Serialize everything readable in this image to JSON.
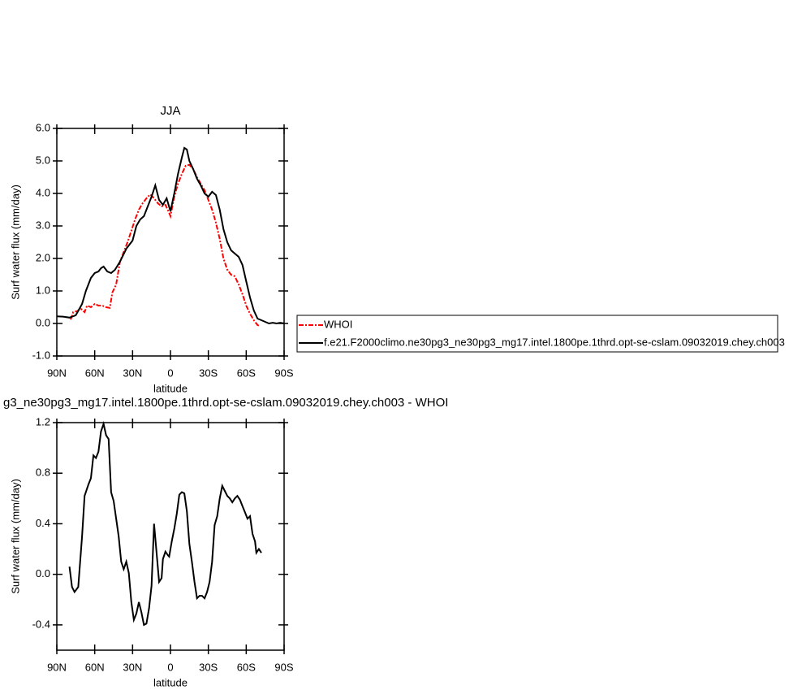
{
  "chart_data": [
    {
      "type": "line",
      "title": "JJA",
      "xlabel": "latitude",
      "ylabel": "Surf water flux (mm/day)",
      "xlim": [
        90,
        -90
      ],
      "xticks": [
        {
          "value": 90,
          "label": "90N"
        },
        {
          "value": 60,
          "label": "60N"
        },
        {
          "value": 30,
          "label": "30N"
        },
        0,
        {
          "value": -30,
          "label": "30S"
        },
        {
          "value": -60,
          "label": "60S"
        },
        {
          "value": -90,
          "label": "90S"
        }
      ],
      "ylim": [
        -1,
        6
      ],
      "yticks": [
        {
          "value": -1,
          "label": "-1.0"
        },
        {
          "value": 0,
          "label": "0.0"
        },
        {
          "value": 1,
          "label": "1.0"
        },
        {
          "value": 2,
          "label": "2.0"
        },
        {
          "value": 3,
          "label": "3.0"
        },
        {
          "value": 4,
          "label": "4.0"
        },
        {
          "value": 5,
          "label": "5.0"
        },
        {
          "value": 6,
          "label": "6.0"
        }
      ],
      "legend": "outside-right",
      "series": [
        {
          "name": "WHOI",
          "color": "#ff0000",
          "linestyle": "dashed",
          "x": [
            79,
            77,
            74,
            71,
            68,
            66,
            63,
            60,
            57,
            54,
            51,
            48,
            46,
            43,
            40,
            37,
            34,
            31,
            28,
            25,
            22,
            19,
            16,
            13,
            10,
            7,
            4,
            1,
            0,
            -3,
            -6,
            -9,
            -12,
            -15,
            -18,
            -21,
            -24,
            -27,
            -30,
            -33,
            -36,
            -39,
            -42,
            -45,
            -48,
            -51,
            -54,
            -57,
            -60,
            -63,
            -66,
            -69,
            -71
          ],
          "values": [
            0.12,
            0.35,
            0.38,
            0.45,
            0.35,
            0.55,
            0.5,
            0.6,
            0.55,
            0.55,
            0.5,
            0.48,
            0.95,
            1.2,
            1.9,
            2.2,
            2.5,
            2.85,
            3.2,
            3.5,
            3.7,
            3.85,
            3.97,
            3.85,
            3.7,
            3.6,
            3.65,
            3.4,
            3.3,
            3.9,
            4.3,
            4.6,
            4.85,
            4.88,
            4.75,
            4.5,
            4.3,
            4.1,
            3.8,
            3.5,
            3.1,
            2.6,
            2.0,
            1.65,
            1.5,
            1.45,
            1.2,
            0.9,
            0.55,
            0.3,
            0.1,
            -0.05,
            -0.08
          ]
        },
        {
          "name": "f.e21.F2000climo.ne30pg3_ne30pg3_mg17.intel.1800pe.1thrd.opt-se-cslam.09032019.chey.ch003",
          "color": "#000000",
          "linestyle": "solid",
          "x": [
            90,
            85,
            80,
            75,
            70,
            67,
            63,
            60,
            57,
            55,
            53,
            50,
            47,
            44,
            40,
            35,
            30,
            27,
            24,
            21,
            18,
            15,
            12,
            9,
            6,
            3,
            0,
            -3,
            -6,
            -9,
            -11,
            -13,
            -15,
            -18,
            -21,
            -24,
            -27,
            -30,
            -33,
            -36,
            -39,
            -42,
            -45,
            -48,
            -51,
            -54,
            -57,
            -60,
            -63,
            -66,
            -69,
            -72,
            -75,
            -78,
            -81,
            -84,
            -87,
            -90
          ],
          "values": [
            0.22,
            0.21,
            0.18,
            0.25,
            0.6,
            1.0,
            1.4,
            1.55,
            1.6,
            1.7,
            1.75,
            1.6,
            1.55,
            1.65,
            1.9,
            2.3,
            2.55,
            3.0,
            3.2,
            3.3,
            3.6,
            3.9,
            4.25,
            3.8,
            3.65,
            3.85,
            3.45,
            4.0,
            4.6,
            5.1,
            5.4,
            5.35,
            5.0,
            4.75,
            4.45,
            4.25,
            4.0,
            3.9,
            4.05,
            3.95,
            3.5,
            2.9,
            2.5,
            2.25,
            2.15,
            2.05,
            1.8,
            1.3,
            0.8,
            0.4,
            0.15,
            0.1,
            0.05,
            0.0,
            0.02,
            0.0,
            0.02,
            0.0
          ]
        }
      ]
    },
    {
      "type": "line",
      "title": "g3_ne30pg3_mg17.intel.1800pe.1thrd.opt-se-cslam.09032019.chey.ch003 - WHOI",
      "xlabel": "latitude",
      "ylabel": "Surf water flux (mm/day)",
      "xlim": [
        90,
        -90
      ],
      "xticks": [
        {
          "value": 90,
          "label": "90N"
        },
        {
          "value": 60,
          "label": "60N"
        },
        {
          "value": 30,
          "label": "30N"
        },
        0,
        {
          "value": -30,
          "label": "30S"
        },
        {
          "value": -60,
          "label": "60S"
        },
        {
          "value": -90,
          "label": "90S"
        }
      ],
      "ylim": [
        -0.6,
        1.2
      ],
      "yticks": [
        -0.4,
        {
          "value": 0,
          "label": "0.0"
        },
        0.4,
        0.8,
        1.2
      ],
      "series": [
        {
          "color": "#000000",
          "linestyle": "solid",
          "x": [
            80,
            78,
            76,
            73,
            70,
            68,
            65,
            63,
            61,
            59,
            57,
            55,
            53,
            51,
            49,
            47,
            45,
            43,
            41,
            39,
            37,
            35,
            33,
            31,
            29,
            27,
            25,
            23,
            21,
            19,
            17,
            15,
            13,
            11,
            9,
            7,
            6,
            4,
            2,
            1,
            -1,
            -3,
            -5,
            -7,
            -9,
            -11,
            -13,
            -15,
            -17,
            -19,
            -21,
            -23,
            -25,
            -27,
            -29,
            -31,
            -33,
            -35,
            -37,
            -39,
            -41,
            -43,
            -45,
            -47,
            -49,
            -51,
            -53,
            -55,
            -57,
            -59,
            -61,
            -63,
            -65,
            -67,
            -68,
            -70,
            -72
          ],
          "values": [
            0.06,
            -0.1,
            -0.14,
            -0.1,
            0.3,
            0.62,
            0.71,
            0.76,
            0.94,
            0.92,
            0.97,
            1.13,
            1.19,
            1.1,
            1.07,
            0.65,
            0.58,
            0.44,
            0.3,
            0.1,
            0.04,
            0.1,
            0.01,
            -0.22,
            -0.36,
            -0.31,
            -0.22,
            -0.3,
            -0.4,
            -0.39,
            -0.27,
            -0.09,
            0.4,
            0.17,
            -0.06,
            -0.03,
            0.12,
            0.18,
            0.15,
            0.14,
            0.26,
            0.36,
            0.48,
            0.63,
            0.65,
            0.64,
            0.5,
            0.24,
            0.1,
            -0.06,
            -0.19,
            -0.17,
            -0.17,
            -0.19,
            -0.14,
            -0.06,
            0.1,
            0.39,
            0.46,
            0.6,
            0.7,
            0.66,
            0.62,
            0.6,
            0.57,
            0.6,
            0.62,
            0.59,
            0.54,
            0.49,
            0.44,
            0.46,
            0.32,
            0.26,
            0.17,
            0.2,
            0.17
          ]
        }
      ]
    }
  ]
}
